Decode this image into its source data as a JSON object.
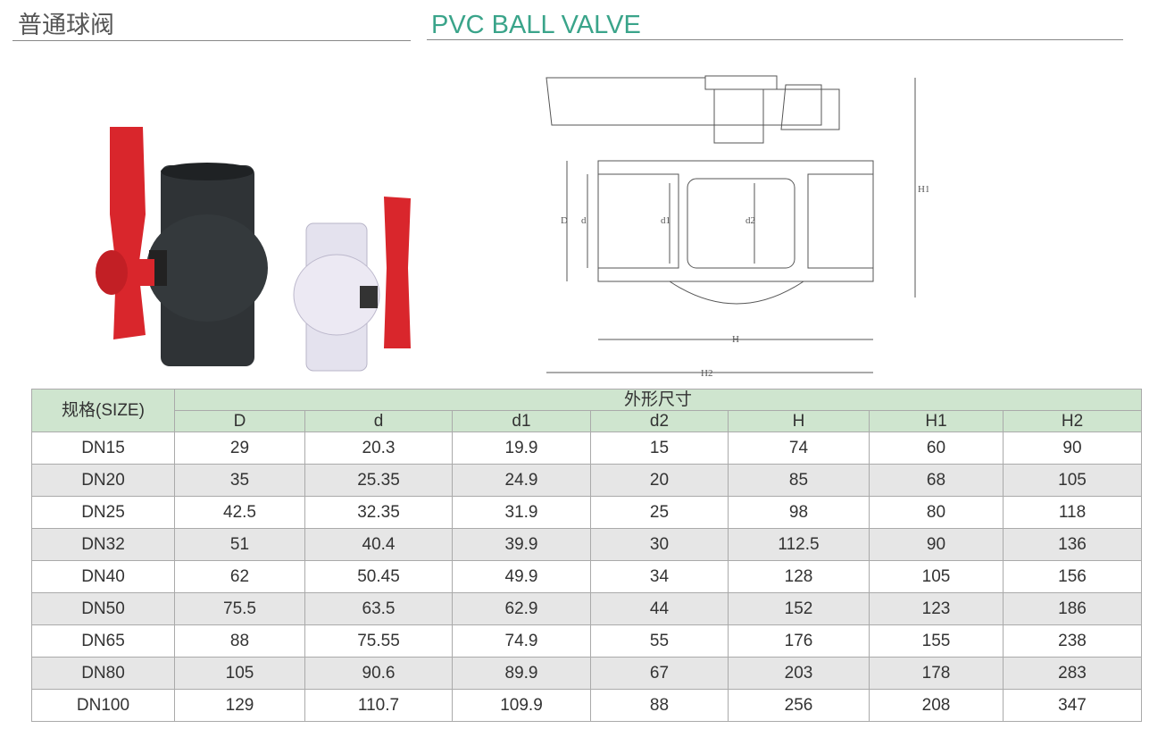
{
  "header": {
    "title_cn": "普通球阀",
    "title_en": "PVC BALL VALVE"
  },
  "drawing": {
    "labels": [
      "D",
      "d",
      "d1",
      "d2",
      "H",
      "H1",
      "H2"
    ]
  },
  "colors": {
    "accent": "#3aa48a",
    "table_header": "#cfe5cf",
    "row_alt": "#e6e6e6",
    "handle": "#d9262c"
  },
  "table": {
    "size_header": "规格(SIZE)",
    "group_header": "外形尺寸",
    "columns": [
      "D",
      "d",
      "d1",
      "d2",
      "H",
      "H1",
      "H2"
    ],
    "rows": [
      [
        "DN15",
        "29",
        "20.3",
        "19.9",
        "15",
        "74",
        "60",
        "90"
      ],
      [
        "DN20",
        "35",
        "25.35",
        "24.9",
        "20",
        "85",
        "68",
        "105"
      ],
      [
        "DN25",
        "42.5",
        "32.35",
        "31.9",
        "25",
        "98",
        "80",
        "118"
      ],
      [
        "DN32",
        "51",
        "40.4",
        "39.9",
        "30",
        "112.5",
        "90",
        "136"
      ],
      [
        "DN40",
        "62",
        "50.45",
        "49.9",
        "34",
        "128",
        "105",
        "156"
      ],
      [
        "DN50",
        "75.5",
        "63.5",
        "62.9",
        "44",
        "152",
        "123",
        "186"
      ],
      [
        "DN65",
        "88",
        "75.55",
        "74.9",
        "55",
        "176",
        "155",
        "238"
      ],
      [
        "DN80",
        "105",
        "90.6",
        "89.9",
        "67",
        "203",
        "178",
        "283"
      ],
      [
        "DN100",
        "129",
        "110.7",
        "109.9",
        "88",
        "256",
        "208",
        "347"
      ]
    ]
  }
}
